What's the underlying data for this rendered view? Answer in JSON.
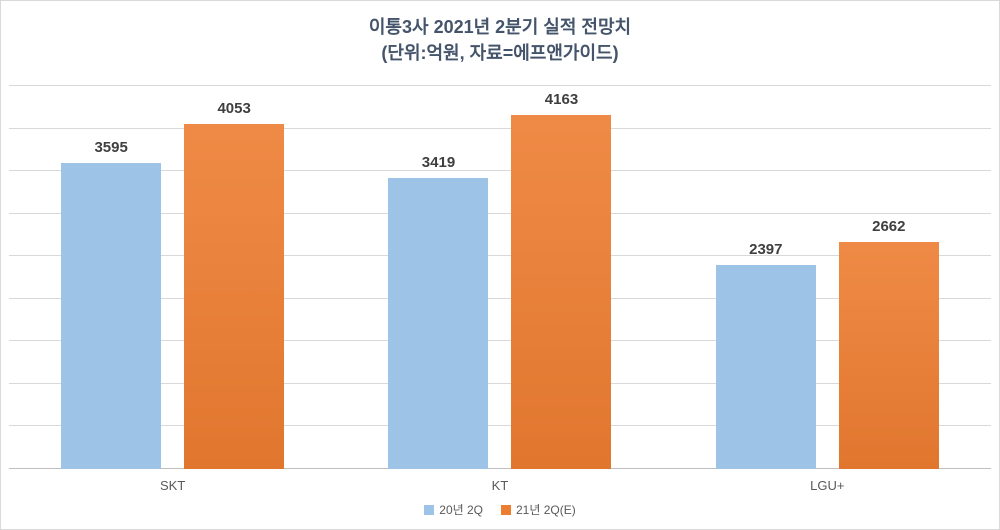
{
  "title": "이통3사 2021년 2분기 실적 전망치",
  "subtitle": "(단위:억원, 자료=에프앤가이드)",
  "chart_data": {
    "type": "bar",
    "title": "이통3사 2021년 2분기 실적 전망치",
    "subtitle": "(단위:억원, 자료=에프앤가이드)",
    "categories": [
      "SKT",
      "KT",
      "LGU+"
    ],
    "series": [
      {
        "name": "20년 2Q",
        "color": "#9dc3e6",
        "values": [
          3595,
          3419,
          2397
        ]
      },
      {
        "name": "21년 2Q(E)",
        "color": "#ed7d31",
        "values": [
          4053,
          4163,
          2662
        ]
      }
    ],
    "xlabel": "",
    "ylabel": "",
    "ylim": [
      0,
      4500
    ],
    "grid_step": 500,
    "grid": true,
    "y_tick_labels_visible": false,
    "data_labels_visible": true,
    "legend_position": "bottom"
  }
}
